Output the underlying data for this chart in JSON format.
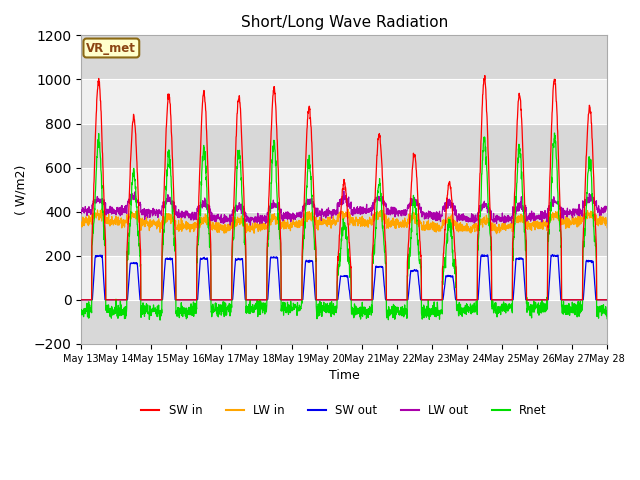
{
  "title": "Short/Long Wave Radiation",
  "xlabel": "Time",
  "ylabel": "( W/m2)",
  "ylim": [
    -200,
    1200
  ],
  "xlim_days": [
    13,
    28
  ],
  "yticks": [
    -200,
    0,
    200,
    400,
    600,
    800,
    1000,
    1200
  ],
  "colors": {
    "SW_in": "#ff0000",
    "LW_in": "#ffa500",
    "SW_out": "#0000ee",
    "LW_out": "#aa00aa",
    "Rnet": "#00dd00"
  },
  "station_label": "VR_met",
  "background_color": "#ffffff",
  "plot_bg_light": "#f0f0f0",
  "plot_bg_dark": "#d8d8d8",
  "grid_color": "#ffffff",
  "sw_peaks": [
    995,
    830,
    930,
    940,
    920,
    960,
    875,
    535,
    750,
    660,
    535,
    1000,
    930,
    1000,
    875
  ],
  "n_days": 15,
  "pts_per_day": 144,
  "day_start": 13
}
